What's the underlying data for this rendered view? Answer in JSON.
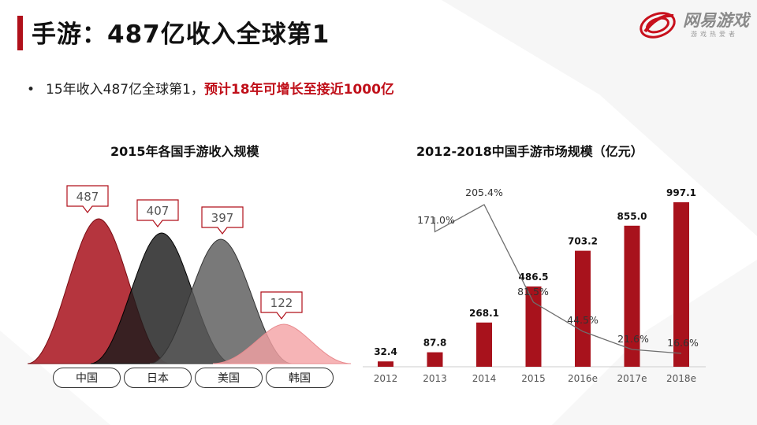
{
  "title": "手游：487亿收入全球第1",
  "bullet": {
    "dot": "•",
    "normal": "15年收入487亿全球第1，",
    "highlight": "预计18年可增长至接近1000亿"
  },
  "logo": {
    "name": "网易游戏",
    "tagline": "游戏热爱者"
  },
  "colors": {
    "accent": "#b0101a",
    "china": "#a8121c",
    "japan": "#1c1c1c",
    "usa": "#555555",
    "korea": "#f4a1a4"
  },
  "chart_data": [
    {
      "type": "area",
      "title": "2015年各国手游收入规模",
      "categories": [
        "中国",
        "日本",
        "美国",
        "韩国"
      ],
      "values": [
        487,
        407,
        397,
        122
      ],
      "labels": [
        "487",
        "407",
        "397",
        "122"
      ]
    },
    {
      "type": "bar",
      "title": "2012-2018中国手游市场规模（亿元）",
      "categories": [
        "2012",
        "2013",
        "2014",
        "2015",
        "2016e",
        "2017e",
        "2018e"
      ],
      "values": [
        32.4,
        87.8,
        268.1,
        486.5,
        703.2,
        855.0,
        997.1
      ],
      "value_labels": [
        "32.4",
        "87.8",
        "268.1",
        "486.5",
        "703.2",
        "855.0",
        "997.1"
      ],
      "growth": [
        171.0,
        205.4,
        81.5,
        44.5,
        21.6,
        16.6
      ],
      "growth_labels": [
        "171.0%",
        "205.4%",
        "81.5%",
        "44.5%",
        "21.6%",
        "16.6%"
      ],
      "ylim": [
        0,
        1000
      ]
    }
  ]
}
